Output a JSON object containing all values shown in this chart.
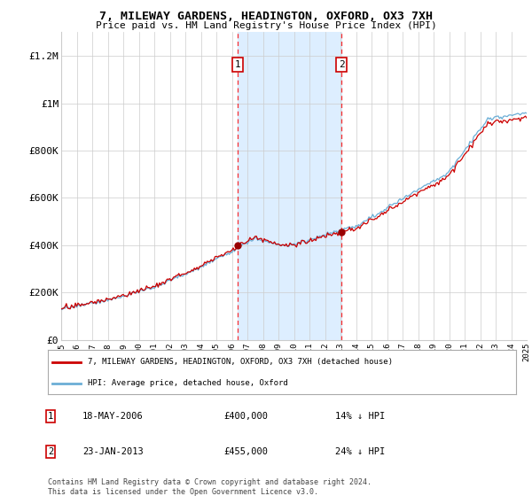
{
  "title": "7, MILEWAY GARDENS, HEADINGTON, OXFORD, OX3 7XH",
  "subtitle": "Price paid vs. HM Land Registry's House Price Index (HPI)",
  "ylim": [
    0,
    1300000
  ],
  "yticks": [
    0,
    200000,
    400000,
    600000,
    800000,
    1000000,
    1200000
  ],
  "ytick_labels": [
    "£0",
    "£200K",
    "£400K",
    "£600K",
    "£800K",
    "£1M",
    "£1.2M"
  ],
  "x_start_year": 1995,
  "x_end_year": 2025,
  "sale1_year": 2006.38,
  "sale1_price": 400000,
  "sale1_label": "1",
  "sale1_date": "18-MAY-2006",
  "sale1_pct": "14%",
  "sale2_year": 2013.07,
  "sale2_price": 455000,
  "sale2_label": "2",
  "sale2_date": "23-JAN-2013",
  "sale2_pct": "24%",
  "hpi_color": "#6baed6",
  "price_color": "#cc0000",
  "sale_marker_color": "#990000",
  "shaded_region_color": "#ddeeff",
  "grid_color": "#cccccc",
  "background_color": "#ffffff",
  "legend_label_price": "7, MILEWAY GARDENS, HEADINGTON, OXFORD, OX3 7XH (detached house)",
  "legend_label_hpi": "HPI: Average price, detached house, Oxford",
  "footer": "Contains HM Land Registry data © Crown copyright and database right 2024.\nThis data is licensed under the Open Government Licence v3.0."
}
